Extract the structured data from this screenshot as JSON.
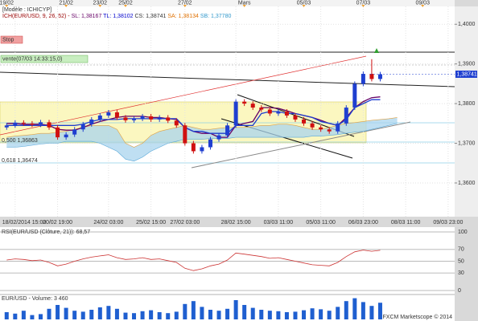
{
  "chart_data": [
    {
      "type": "candlestick",
      "title": "[Modèle : ICHICYP]",
      "legend": [
        {
          "text": "ICH(EUR/USD, 9, 26, 52) - ",
          "color": "#990000"
        },
        {
          "text": "SL: 1,38167 ",
          "color": "#660066"
        },
        {
          "text": "TL: 1,38102 ",
          "color": "#0000cc"
        },
        {
          "text": "CS: 1,38741 ",
          "color": "#333333"
        },
        {
          "text": "SA: 1,38134 ",
          "color": "#e07000"
        },
        {
          "text": "SB: 1,37780",
          "color": "#3399cc"
        }
      ],
      "categories": [
        null,
        "18/02/2014 15:00",
        null,
        null,
        null,
        null,
        "20/02 19:00",
        null,
        null,
        null,
        null,
        null,
        "24/02 03:00",
        null,
        null,
        null,
        null,
        "25/02 15:00",
        null,
        null,
        null,
        "27/02 03:00",
        null,
        null,
        null,
        null,
        null,
        "28/02 15:00",
        null,
        null,
        null,
        null,
        "03/03 11:00",
        null,
        null,
        null,
        null,
        "05/03 11:00",
        null,
        null,
        null,
        null,
        "06/03 23:00",
        null,
        null,
        null,
        null,
        "08/03 11:00",
        null,
        null,
        null,
        null,
        "09/03 23:00",
        null
      ],
      "top_categories": [
        "19/02",
        null,
        null,
        null,
        null,
        null,
        null,
        "21/02",
        null,
        null,
        null,
        "23/02",
        null,
        null,
        "25/02",
        null,
        null,
        null,
        null,
        null,
        null,
        "27/02",
        null,
        null,
        null,
        null,
        null,
        null,
        "Mars",
        null,
        null,
        null,
        null,
        null,
        null,
        "05/03",
        null,
        null,
        null,
        null,
        null,
        null,
        "07/03",
        null,
        null,
        null,
        null,
        null,
        null,
        "09/03",
        null,
        null,
        null,
        null
      ],
      "open": [
        1.374,
        1.3745,
        1.3752,
        1.375,
        1.3747,
        1.3753,
        1.374,
        1.3715,
        1.3722,
        1.3735,
        1.3748,
        1.376,
        1.377,
        1.3778,
        1.3765,
        1.3758,
        1.3762,
        1.3768,
        1.376,
        1.3765,
        1.3757,
        1.3745,
        1.37,
        1.368,
        1.369,
        1.371,
        1.372,
        1.3745,
        1.3805,
        1.38,
        1.379,
        1.3785,
        1.3775,
        1.378,
        1.377,
        1.376,
        1.375,
        1.374,
        1.3735,
        1.373,
        1.375,
        1.379,
        1.385,
        1.3875,
        1.3862,
        null,
        null,
        null,
        null,
        null,
        null,
        null,
        null,
        null
      ],
      "high": [
        1.3751,
        1.3758,
        1.3758,
        1.3756,
        1.3759,
        1.3759,
        1.3746,
        1.3728,
        1.3741,
        1.3754,
        1.3766,
        1.3776,
        1.3784,
        1.3784,
        1.3771,
        1.3768,
        1.3774,
        1.3774,
        1.3771,
        1.3771,
        1.3763,
        1.3751,
        1.3706,
        1.3696,
        1.3716,
        1.3726,
        1.3751,
        1.3811,
        1.3811,
        1.3806,
        1.3796,
        1.3791,
        1.3786,
        1.3786,
        1.3776,
        1.3766,
        1.3756,
        1.3746,
        1.3741,
        1.3756,
        1.3796,
        1.3856,
        1.3881,
        1.3912,
        1.388,
        null,
        null,
        null,
        null,
        null,
        null,
        null,
        null,
        null
      ],
      "low": [
        1.3734,
        1.3739,
        1.3744,
        1.3741,
        1.3741,
        1.3734,
        1.3709,
        1.3709,
        1.3716,
        1.3729,
        1.3742,
        1.3754,
        1.3764,
        1.3759,
        1.3752,
        1.3752,
        1.3756,
        1.3754,
        1.3754,
        1.3751,
        1.3739,
        1.3694,
        1.3674,
        1.3674,
        1.3684,
        1.3704,
        1.3714,
        1.3739,
        1.3794,
        1.3784,
        1.3779,
        1.3769,
        1.3769,
        1.3764,
        1.3754,
        1.3744,
        1.3734,
        1.3729,
        1.3724,
        1.3724,
        1.3744,
        1.3784,
        1.3844,
        1.3856,
        1.3856,
        null,
        null,
        null,
        null,
        null,
        null,
        null,
        null,
        null
      ],
      "close": [
        1.3745,
        1.3752,
        1.375,
        1.3747,
        1.3753,
        1.374,
        1.3715,
        1.3722,
        1.3735,
        1.3748,
        1.376,
        1.377,
        1.3778,
        1.3765,
        1.3758,
        1.3762,
        1.3768,
        1.376,
        1.3765,
        1.3757,
        1.3745,
        1.37,
        1.368,
        1.369,
        1.371,
        1.372,
        1.3745,
        1.3805,
        1.38,
        1.379,
        1.3785,
        1.3775,
        1.378,
        1.377,
        1.376,
        1.375,
        1.374,
        1.3735,
        1.373,
        1.375,
        1.379,
        1.385,
        1.3875,
        1.3862,
        1.3874,
        null,
        null,
        null,
        null,
        null,
        null,
        null,
        null,
        null
      ],
      "up_color": "#1f3fd0",
      "down_color": "#d01010",
      "lines": [
        {
          "color": "#660066",
          "values": [
            1.375,
            1.375,
            1.3748,
            1.3748,
            1.3748,
            1.3745,
            1.3735,
            1.3733,
            1.3733,
            1.374,
            1.3748,
            1.3755,
            1.376,
            1.3765,
            1.3768,
            1.3768,
            1.3768,
            1.3765,
            1.3765,
            1.3762,
            1.376,
            1.374,
            1.373,
            1.3725,
            1.3725,
            1.3715,
            1.3715,
            1.3745,
            1.375,
            1.3755,
            1.379,
            1.379,
            1.3788,
            1.3782,
            1.3775,
            1.377,
            1.3765,
            1.3758,
            1.375,
            1.3745,
            1.3765,
            1.379,
            1.3805,
            1.3815,
            1.3817,
            null,
            null,
            null,
            null,
            null,
            null,
            null,
            null,
            null
          ]
        },
        {
          "color": "#1f3fd0",
          "values": [
            1.3745,
            1.3745,
            1.3745,
            1.3745,
            1.3745,
            1.3745,
            1.3745,
            1.3745,
            1.3745,
            1.3748,
            1.3755,
            1.376,
            1.376,
            1.376,
            1.3762,
            1.3762,
            1.3762,
            1.3762,
            1.3762,
            1.3762,
            1.3762,
            1.374,
            1.373,
            1.373,
            1.3725,
            1.3725,
            1.3725,
            1.3745,
            1.3745,
            1.3745,
            1.3775,
            1.378,
            1.378,
            1.3775,
            1.3775,
            1.377,
            1.3765,
            1.3755,
            1.375,
            1.3745,
            1.376,
            1.379,
            1.38,
            1.381,
            1.381,
            null,
            null,
            null,
            null,
            null,
            null,
            null,
            null,
            null
          ]
        }
      ],
      "cloud": {
        "color": "#a9d4ee",
        "upper": [
          1.3715,
          1.3718,
          1.372,
          1.3722,
          1.3725,
          1.3725,
          1.3728,
          1.373,
          1.3735,
          1.374,
          1.3745,
          1.3745,
          1.3745,
          1.3735,
          1.37,
          1.369,
          1.37,
          1.372,
          1.373,
          1.3735,
          1.374,
          1.3745,
          1.374,
          1.3735,
          1.3735,
          1.3738,
          1.374,
          1.374,
          1.374,
          1.3742,
          1.3745,
          1.3745,
          1.3748,
          1.3748,
          1.3745,
          1.374,
          1.3735,
          1.3735,
          1.374,
          1.3745,
          1.375,
          1.3752,
          1.3755,
          1.3758,
          1.376,
          1.3762,
          1.3765,
          null,
          null,
          null,
          null,
          null,
          null,
          null
        ],
        "lower": [
          1.369,
          1.369,
          1.3692,
          1.3695,
          1.3698,
          1.37,
          1.37,
          1.3705,
          1.3705,
          1.3705,
          1.3705,
          1.37,
          1.369,
          1.368,
          1.366,
          1.3655,
          1.3665,
          1.368,
          1.369,
          1.37,
          1.3705,
          1.371,
          1.371,
          1.371,
          1.3712,
          1.3712,
          1.3712,
          1.3715,
          1.3715,
          1.3715,
          1.3715,
          1.3715,
          1.3715,
          1.3715,
          1.3715,
          1.3715,
          1.3718,
          1.3718,
          1.372,
          1.3722,
          1.3725,
          1.3728,
          1.373,
          1.3735,
          1.374,
          1.3745,
          1.375,
          null,
          null,
          null,
          null,
          null,
          null,
          null
        ]
      },
      "last_price": {
        "value": 1.38741,
        "label": "1,38741"
      },
      "annotations": {
        "stop": "Stop",
        "sell": "vente(07/03 14:33:15,0)",
        "fib_500": "0,500 1,36863",
        "fib_618": "0,618 1,36474"
      },
      "ylim": [
        1.3515,
        1.4045
      ],
      "yticks": [
        {
          "value": 1.36,
          "label": "1,3600"
        },
        {
          "value": 1.37,
          "label": "1,3700"
        },
        {
          "value": 1.38,
          "label": "1,3800"
        },
        {
          "value": 1.39,
          "label": "1,3900"
        },
        {
          "value": 1.4,
          "label": "1,4000"
        }
      ],
      "grid": true
    },
    {
      "type": "line",
      "title": "RSI(EUR/USD (Clôture, 21)): 68,57",
      "color": "#cc3333",
      "values": [
        52,
        54,
        53,
        51,
        52,
        48,
        42,
        45,
        50,
        54,
        57,
        59,
        61,
        56,
        53,
        54,
        56,
        53,
        54,
        51,
        48,
        38,
        34,
        37,
        42,
        45,
        52,
        64,
        62,
        60,
        58,
        55,
        56,
        53,
        50,
        47,
        44,
        43,
        42,
        48,
        58,
        66,
        69,
        67,
        68.57
      ],
      "ylim": [
        0,
        100
      ],
      "yticks": [
        100,
        70,
        50,
        30,
        0
      ]
    },
    {
      "type": "bar",
      "title": "EUR/USD - Volume: 3 460",
      "footer": "FXCM Marketscope © 2014",
      "color": "#1f5fd0",
      "values": [
        1500,
        1200,
        1800,
        900,
        1100,
        2200,
        3000,
        2400,
        1800,
        1600,
        2000,
        2500,
        2800,
        2200,
        1400,
        1300,
        1700,
        1900,
        1500,
        1300,
        1600,
        3200,
        3800,
        2600,
        2000,
        1800,
        2200,
        4000,
        3000,
        2400,
        2000,
        1800,
        1700,
        1500,
        1600,
        1900,
        2300,
        2100,
        1800,
        2600,
        3800,
        4400,
        3600,
        2800,
        3460
      ],
      "ylim": [
        0,
        4500
      ]
    }
  ]
}
